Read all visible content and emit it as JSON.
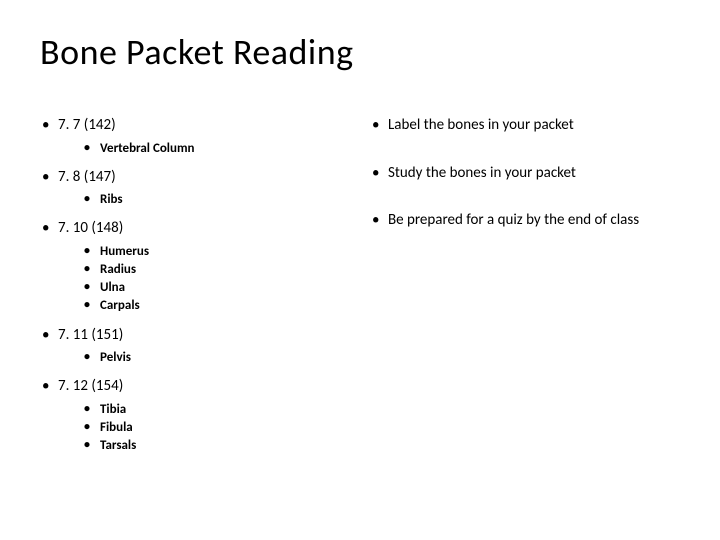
{
  "title": "Bone Packet Reading",
  "left": {
    "sections": [
      {
        "heading": "7. 7  (142)",
        "items": [
          "Vertebral Column"
        ]
      },
      {
        "heading": "7. 8 (147)",
        "items": [
          "Ribs"
        ]
      },
      {
        "heading": "7. 10 (148)",
        "items": [
          "Humerus",
          "Radius",
          "Ulna",
          "Carpals"
        ]
      },
      {
        "heading": "7. 11 (151)",
        "items": [
          "Pelvis"
        ]
      },
      {
        "heading": "7. 12 (154)",
        "items": [
          "Tibia",
          "Fibula",
          "Tarsals"
        ]
      }
    ]
  },
  "right": {
    "items": [
      "Label the bones in your packet",
      "Study the bones in your packet",
      "Be prepared for a quiz by the end of class"
    ]
  },
  "style": {
    "title_fontsize": 36,
    "body_fontsize": 15,
    "sub_fontsize": 13,
    "text_color": "#000000",
    "background_color": "#ffffff"
  }
}
